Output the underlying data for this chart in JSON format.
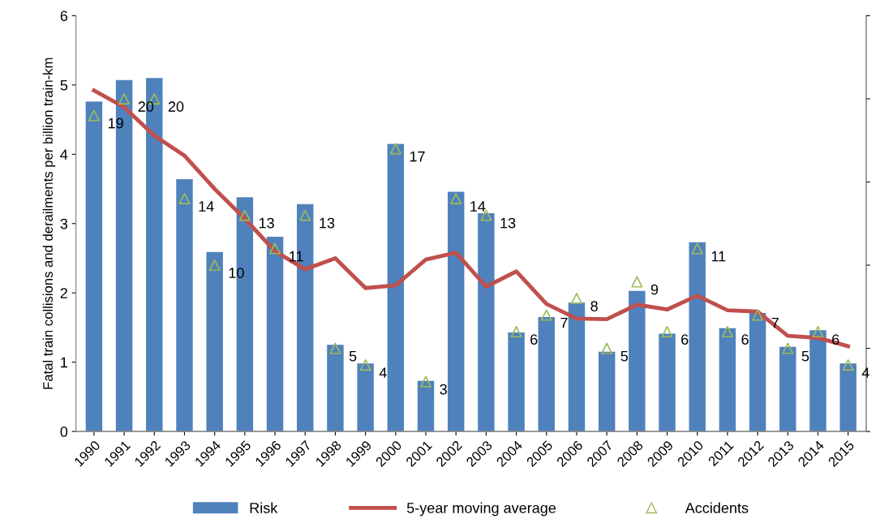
{
  "chart_data": {
    "type": "bar",
    "ylabel": "Fatal train collisions and derailments per billion train-km",
    "categories": [
      "1990",
      "1991",
      "1992",
      "1993",
      "1994",
      "1995",
      "1996",
      "1997",
      "1998",
      "1999",
      "2000",
      "2001",
      "2002",
      "2003",
      "2004",
      "2005",
      "2006",
      "2007",
      "2008",
      "2009",
      "2010",
      "2011",
      "2012",
      "2013",
      "2014",
      "2015"
    ],
    "series": [
      {
        "name": "Risk",
        "color": "#4f81bd",
        "values": [
          4.76,
          5.07,
          5.1,
          3.64,
          2.59,
          3.38,
          2.81,
          3.28,
          1.25,
          0.98,
          4.15,
          0.73,
          3.46,
          3.15,
          1.43,
          1.65,
          1.86,
          1.15,
          2.03,
          1.41,
          2.73,
          1.49,
          1.71,
          1.22,
          1.46,
          0.98
        ]
      },
      {
        "name": "5-year moving average",
        "type": "line",
        "color": "#c0504d",
        "marker": "none",
        "line_style": "solid",
        "values": [
          4.92,
          4.68,
          4.27,
          3.98,
          3.5,
          3.07,
          2.6,
          2.34,
          2.5,
          2.07,
          2.11,
          2.48,
          2.58,
          2.09,
          2.31,
          1.84,
          1.63,
          1.62,
          1.83,
          1.76,
          1.96,
          1.75,
          1.73,
          1.38,
          1.35,
          1.23
        ]
      },
      {
        "name": "Accidents",
        "type": "scatter",
        "axis": "y2",
        "color": "#9bbb59",
        "marker": "triangle",
        "values": [
          19,
          20,
          20,
          14,
          10,
          13,
          11,
          13,
          5,
          4,
          17,
          3,
          14,
          13,
          6,
          7,
          8,
          5,
          9,
          6,
          11,
          6,
          7,
          5,
          6,
          4
        ],
        "value_labels": [
          "19",
          "20",
          "20",
          "14",
          "10",
          "13",
          "11",
          "13",
          "5",
          "4",
          "17",
          "3",
          "14",
          "13",
          "6",
          "7",
          "8",
          "5",
          "9",
          "6",
          "11",
          "6",
          "7",
          "5",
          "6",
          "4"
        ]
      }
    ],
    "ylim": [
      0,
      6
    ],
    "yticks": [
      0,
      1,
      2,
      3,
      4,
      5,
      6
    ],
    "y2lim": [
      0,
      25
    ],
    "y2ticks": [
      {
        "value": 0,
        "label": null
      },
      {
        "value": 5,
        "label": null
      },
      {
        "value": 10,
        "label": null
      },
      {
        "value": 15,
        "label": null
      },
      {
        "value": 20,
        "label": null
      },
      {
        "value": 25,
        "label": null
      }
    ],
    "grid": false,
    "legend": "bottom"
  }
}
